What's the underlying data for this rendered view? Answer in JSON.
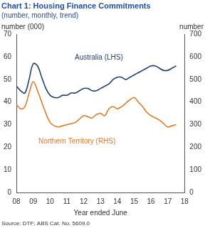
{
  "chart_data": {
    "type": "line",
    "title": "Chart 1: Housing Finance Commitments",
    "subtitle": "(number, monthly, trend)",
    "x_label": "Year ended June",
    "y_label": "number (000)",
    "y2_label": "number",
    "source": "Source: DTF; ABS Cat. No. 5609.0",
    "x": [
      8.0,
      8.25,
      8.5,
      8.75,
      9.0,
      9.25,
      9.5,
      9.75,
      10.0,
      10.25,
      10.5,
      10.75,
      11.0,
      11.25,
      11.5,
      11.75,
      12.0,
      12.25,
      12.5,
      12.75,
      13.0,
      13.25,
      13.5,
      13.75,
      14.0,
      14.25,
      14.5,
      14.75,
      15.0,
      15.25,
      15.5,
      15.75,
      16.0,
      16.25,
      16.5,
      16.75,
      17.0,
      17.25,
      17.5
    ],
    "series": [
      {
        "name": "Australia (LHS)",
        "color": "#1f3f73",
        "axis": "y",
        "values": [
          47,
          45,
          44,
          50,
          57,
          56,
          51,
          46,
          43,
          42,
          42,
          43,
          43,
          44,
          44,
          45,
          46,
          46,
          45,
          45,
          46,
          47,
          48,
          50,
          51,
          51,
          50,
          51,
          52,
          53,
          54,
          55,
          56,
          56,
          55,
          54,
          54,
          55,
          56
        ]
      },
      {
        "name": "Northern Territory (RHS)",
        "color": "#e07b2a",
        "axis": "y2",
        "values": [
          390,
          370,
          380,
          440,
          490,
          450,
          400,
          350,
          310,
          295,
          290,
          295,
          300,
          305,
          310,
          325,
          340,
          335,
          330,
          345,
          350,
          340,
          370,
          380,
          370,
          380,
          395,
          410,
          420,
          400,
          380,
          355,
          340,
          330,
          320,
          305,
          290,
          295,
          300
        ]
      }
    ],
    "xlim": [
      8,
      18
    ],
    "xticks": [
      {
        "value": 8,
        "label": "08"
      },
      {
        "value": 9,
        "label": "09"
      },
      10,
      11,
      12,
      13,
      14,
      15,
      16,
      17,
      18
    ],
    "ylim": [
      0,
      70
    ],
    "yticks": [
      0,
      10,
      20,
      30,
      40,
      50,
      60,
      70
    ],
    "y2lim": [
      0,
      700
    ],
    "y2ticks": [
      0,
      100,
      200,
      300,
      400,
      500,
      600,
      700
    ],
    "grid": false
  }
}
